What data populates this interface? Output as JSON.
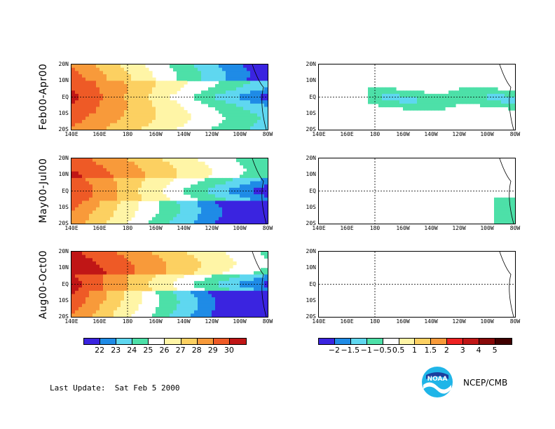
{
  "rows": [
    {
      "label": "Feb00-Apr00"
    },
    {
      "label": "May00-Jul00"
    },
    {
      "label": "Aug00-Oct00"
    }
  ],
  "lat_ticks": [
    "20N",
    "10N",
    "EQ",
    "10S",
    "20S"
  ],
  "lon_ticks": [
    "140E",
    "160E",
    "180",
    "160W",
    "140W",
    "120W",
    "100W",
    "80W"
  ],
  "sst_colorbar": {
    "labels": [
      "22",
      "23",
      "24",
      "25",
      "26",
      "27",
      "28",
      "29",
      "30"
    ],
    "colors": [
      "#3a24e0",
      "#1f8be6",
      "#5fd7f0",
      "#4de0a8",
      "#ffffff",
      "#fff5a6",
      "#fcd061",
      "#f89a3a",
      "#ee5a26",
      "#c01616"
    ]
  },
  "anom_colorbar": {
    "labels": [
      "−2",
      "−1.5",
      "−1",
      "−0.5",
      "0.5",
      "1",
      "1.5",
      "2",
      "3",
      "4",
      "5"
    ],
    "colors": [
      "#3a24e0",
      "#1f8be6",
      "#5fd7f0",
      "#4de0a8",
      "#ffffff",
      "#fff5a6",
      "#fcd061",
      "#f89a3a",
      "#ee2222",
      "#c01616",
      "#880a0a",
      "#400000"
    ]
  },
  "footer": {
    "last_update_label": "Last Update:",
    "date": "Sat Feb 5 2000",
    "credit": "NCEP/CMB",
    "logo_text": "NOAA"
  }
}
